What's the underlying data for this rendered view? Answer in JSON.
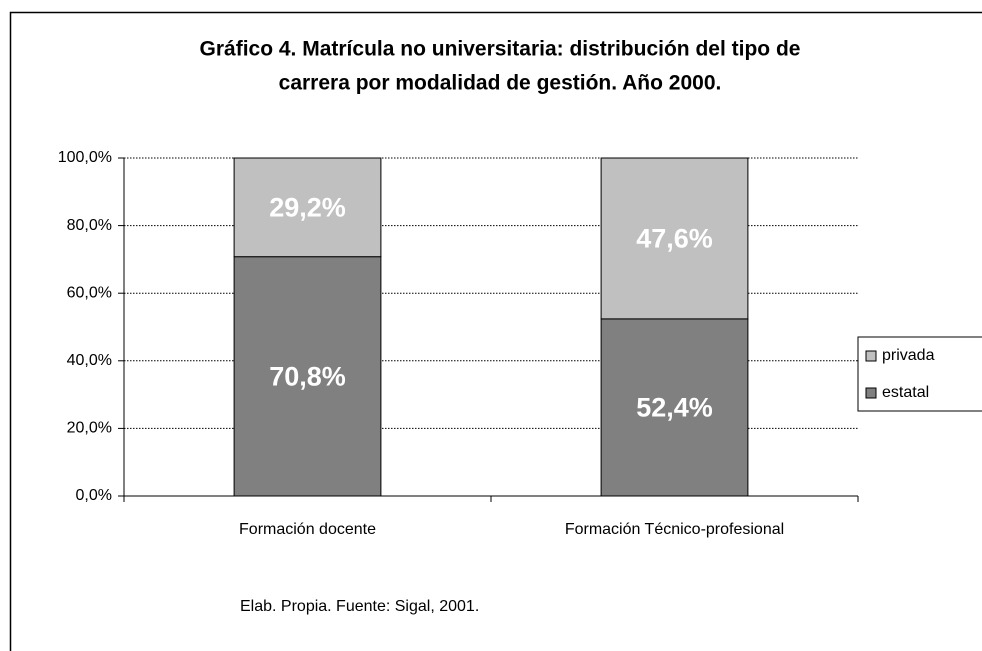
{
  "chart_data": {
    "type": "stacked_bar",
    "title": [
      "Gráfico 4. Matrícula no universitaria: distribución del tipo de",
      "carrera por modalidad de gestión. Año 2000."
    ],
    "categories": [
      "Formación docente",
      "Formación Técnico-profesional"
    ],
    "series": [
      {
        "name": "estatal",
        "color": "#808080",
        "values": [
          70.8,
          52.4
        ],
        "value_labels": [
          "70,8%",
          "52,4%"
        ]
      },
      {
        "name": "privada",
        "color": "#c0c0c0",
        "values": [
          29.2,
          47.6
        ],
        "value_labels": [
          "29,2%",
          "47,6%"
        ]
      }
    ],
    "ylim": [
      0,
      100
    ],
    "yticks": [
      {
        "value": 0,
        "label": "0,0%"
      },
      {
        "value": 20,
        "label": "20,0%"
      },
      {
        "value": 40,
        "label": "40,0%"
      },
      {
        "value": 60,
        "label": "60,0%"
      },
      {
        "value": 80,
        "label": "80,0%"
      },
      {
        "value": 100,
        "label": "100,0%"
      }
    ],
    "grid": true,
    "legend": "right",
    "note": "Elab. Propia. Fuente: Sigal, 2001."
  }
}
